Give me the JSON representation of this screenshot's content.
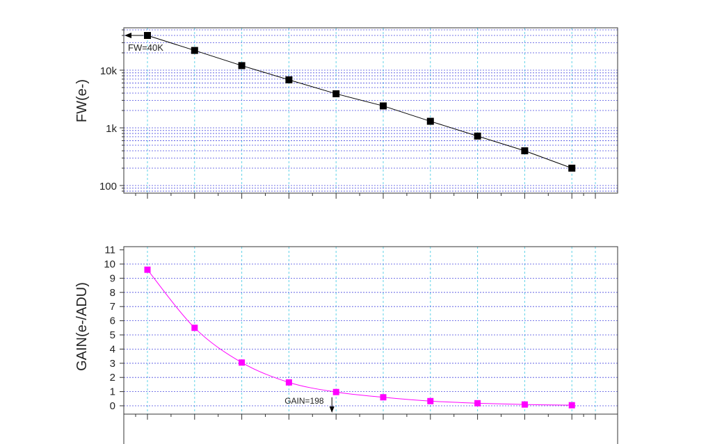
{
  "chart_data": [
    {
      "type": "line",
      "ylabel": "FW(e-)",
      "y_scale": "log",
      "ylim": [
        80,
        50000
      ],
      "yticks": [
        {
          "value": 100,
          "label": "100"
        },
        {
          "value": 1000,
          "label": "1k"
        },
        {
          "value": 10000,
          "label": "10k"
        }
      ],
      "grid": true,
      "series": [
        {
          "color": "#000000",
          "marker": "square",
          "x": [
            1,
            2,
            3,
            4,
            5,
            6,
            7,
            8,
            9,
            10
          ],
          "values": [
            40000,
            22000,
            12000,
            6800,
            3900,
            2400,
            1300,
            720,
            400,
            200
          ]
        }
      ],
      "annotation": {
        "text": "FW=40K",
        "arrow": "left",
        "target_value": 40000
      }
    },
    {
      "type": "line",
      "ylabel": "GAIN(e-/ADU)",
      "ylim": [
        -0.5,
        11
      ],
      "yticks": [
        {
          "value": 0,
          "label": "0"
        },
        {
          "value": 1,
          "label": "1"
        },
        {
          "value": 2,
          "label": "2"
        },
        {
          "value": 3,
          "label": "3"
        },
        {
          "value": 4,
          "label": "4"
        },
        {
          "value": 5,
          "label": "5"
        },
        {
          "value": 6,
          "label": "6"
        },
        {
          "value": 7,
          "label": "7"
        },
        {
          "value": 8,
          "label": "8"
        },
        {
          "value": 9,
          "label": "9"
        },
        {
          "value": 10,
          "label": "10"
        },
        {
          "value": 11,
          "label": "11"
        }
      ],
      "grid": true,
      "series": [
        {
          "color": "#ff00ff",
          "marker": "square",
          "x": [
            1,
            2,
            3,
            4,
            5,
            6,
            7,
            8,
            9,
            10
          ],
          "values": [
            9.6,
            5.5,
            3.05,
            1.65,
            0.97,
            0.6,
            0.33,
            0.18,
            0.09,
            0.04
          ]
        }
      ],
      "annotation": {
        "text": "GAIN=198",
        "arrow": "down",
        "target_x": 5
      }
    }
  ]
}
